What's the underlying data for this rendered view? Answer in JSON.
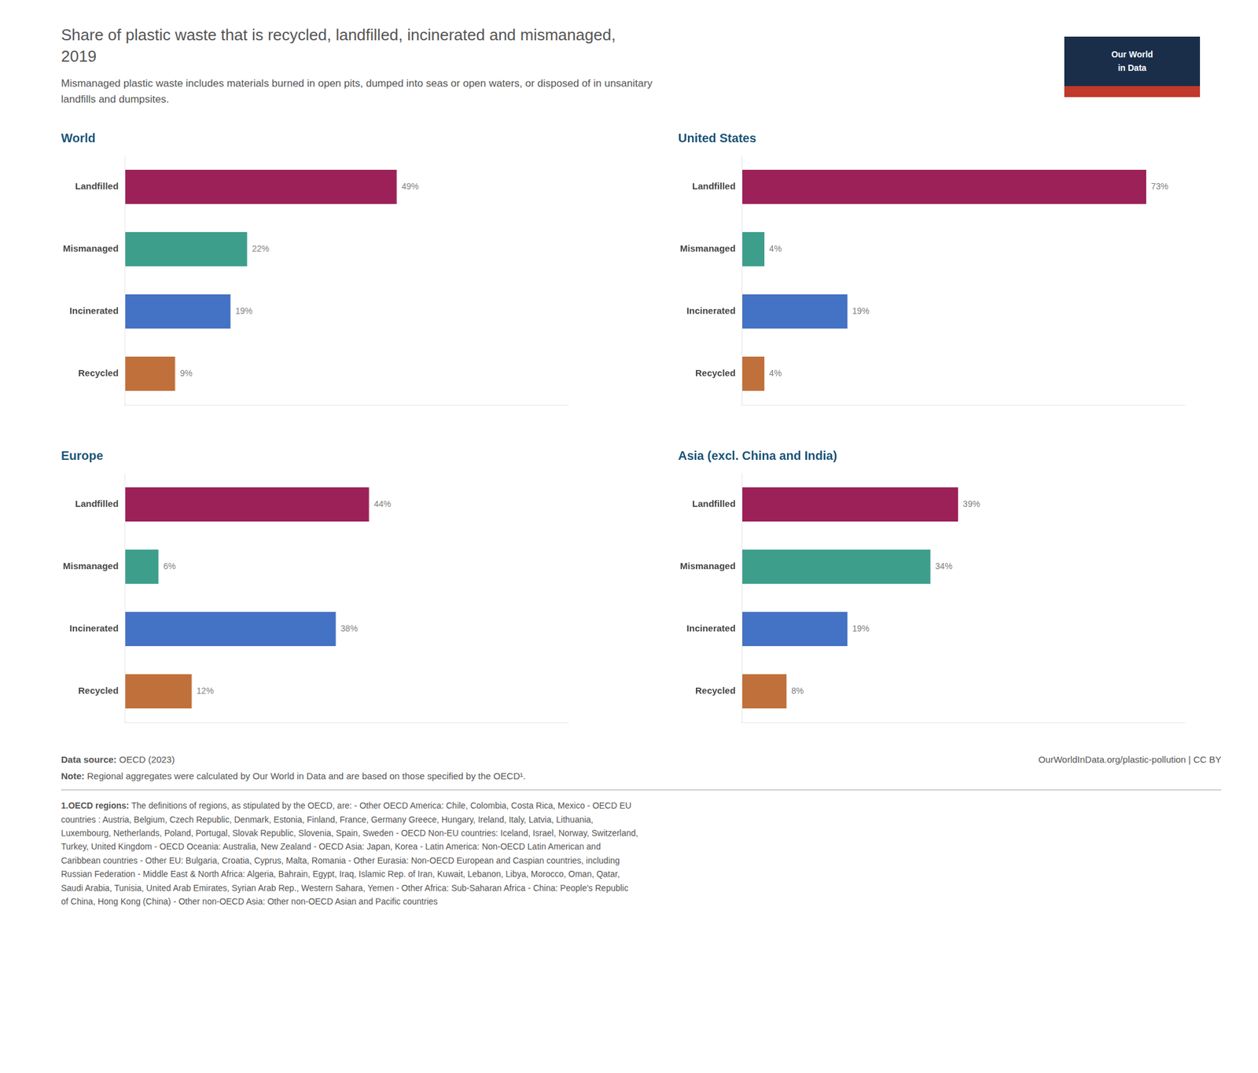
{
  "title": [
    "Share of plastic waste that is recycled, landfilled, incinerated and mismanaged,",
    "2019"
  ],
  "subtitle": "Mismanaged plastic waste includes materials burned in open pits, dumped into seas or open waters, or disposed of in unsanitary\nlandfills and dumpsites.",
  "annotations": [
    "Data source: OECD (2023)",
    "OurWorldInData.org/plastic-pollution | CC BY",
    "Note: Regional aggregates were calculated by Our World in Data and are based on those specified by the OECD¹.",
    "1.OECD regions: The definitions of regions, as stipulated by the OECD, are: - Other OECD America: Chile, Colombia, Costa Rica, Mexico - OECD EU\ncountries : Austria, Belgium, Czech Republic, Denmark, Estonia, Finland, France, Germany Greece, Hungary, Ireland, Italy, Latvia, Lithuania,\nLuxembourg, Netherlands, Poland, Portugal, Slovak Republic, Slovenia, Spain, Sweden - OECD Non-EU countries: Iceland, Israel, Norway, Switzerland,\nTurkey, United Kingdom - OECD Oceania: Australia, New Zealand - OECD Asia: Japan, Korea - Latin America: Non-OECD Latin American and\nCaribbean countries - Other EU: Bulgaria, Croatia, Cyprus, Malta, Romania - Other Eurasia: Non-OECD European and Caspian countries, including\nRussian Federation - Middle East & North Africa: Algeria, Bahrain, Egypt, Iraq, Islamic Rep. of Iran, Kuwait, Lebanon, Libya, Morocco, Oman, Qatar,\nSaudi Arabia, Tunisia, United Arab Emirates, Syrian Arab Rep., Western Sahara, Yemen - Other Africa: Sub-Saharan Africa - China: People's Republic\nof China, Hong Kong (China) - Other non-OECD Asia: Other non-OECD Asian and Pacific countries",
    "Our World\nin Data"
  ],
  "chart_data": [
    {
      "type": "bar",
      "orientation": "horizontal",
      "title": "World",
      "categories": [
        "Landfilled",
        "Mismanaged",
        "Incinerated",
        "Recycled"
      ],
      "values": [
        49,
        22,
        19,
        9
      ],
      "value_labels": [
        "49%",
        "22%",
        "19%",
        "9%"
      ],
      "colors": [
        "#9b2158",
        "#3d9e8c",
        "#4472c4",
        "#c0703a"
      ],
      "xlim": [
        0,
        80
      ],
      "grid": false,
      "tick_labels": "y",
      "data_labels": true
    },
    {
      "type": "bar",
      "orientation": "horizontal",
      "title": "United States",
      "categories": [
        "Landfilled",
        "Mismanaged",
        "Incinerated",
        "Recycled"
      ],
      "values": [
        73,
        4,
        19,
        4
      ],
      "value_labels": [
        "73%",
        "4%",
        "19%",
        "4%"
      ],
      "colors": [
        "#9b2158",
        "#3d9e8c",
        "#4472c4",
        "#c0703a"
      ],
      "xlim": [
        0,
        80
      ],
      "grid": false,
      "tick_labels": "y",
      "data_labels": true
    },
    {
      "type": "bar",
      "orientation": "horizontal",
      "title": "Europe",
      "categories": [
        "Landfilled",
        "Mismanaged",
        "Incinerated",
        "Recycled"
      ],
      "values": [
        44,
        6,
        38,
        12
      ],
      "value_labels": [
        "44%",
        "6%",
        "38%",
        "12%"
      ],
      "colors": [
        "#9b2158",
        "#3d9e8c",
        "#4472c4",
        "#c0703a"
      ],
      "xlim": [
        0,
        80
      ],
      "grid": false,
      "tick_labels": "y",
      "data_labels": true
    },
    {
      "type": "bar",
      "orientation": "horizontal",
      "title": "Asia (excl. China and India)",
      "categories": [
        "Landfilled",
        "Mismanaged",
        "Incinerated",
        "Recycled"
      ],
      "values": [
        39,
        34,
        19,
        8
      ],
      "value_labels": [
        "39%",
        "34%",
        "19%",
        "8%"
      ],
      "colors": [
        "#9b2158",
        "#3d9e8c",
        "#4472c4",
        "#c0703a"
      ],
      "xlim": [
        0,
        80
      ],
      "grid": false,
      "tick_labels": "y",
      "data_labels": true
    }
  ]
}
